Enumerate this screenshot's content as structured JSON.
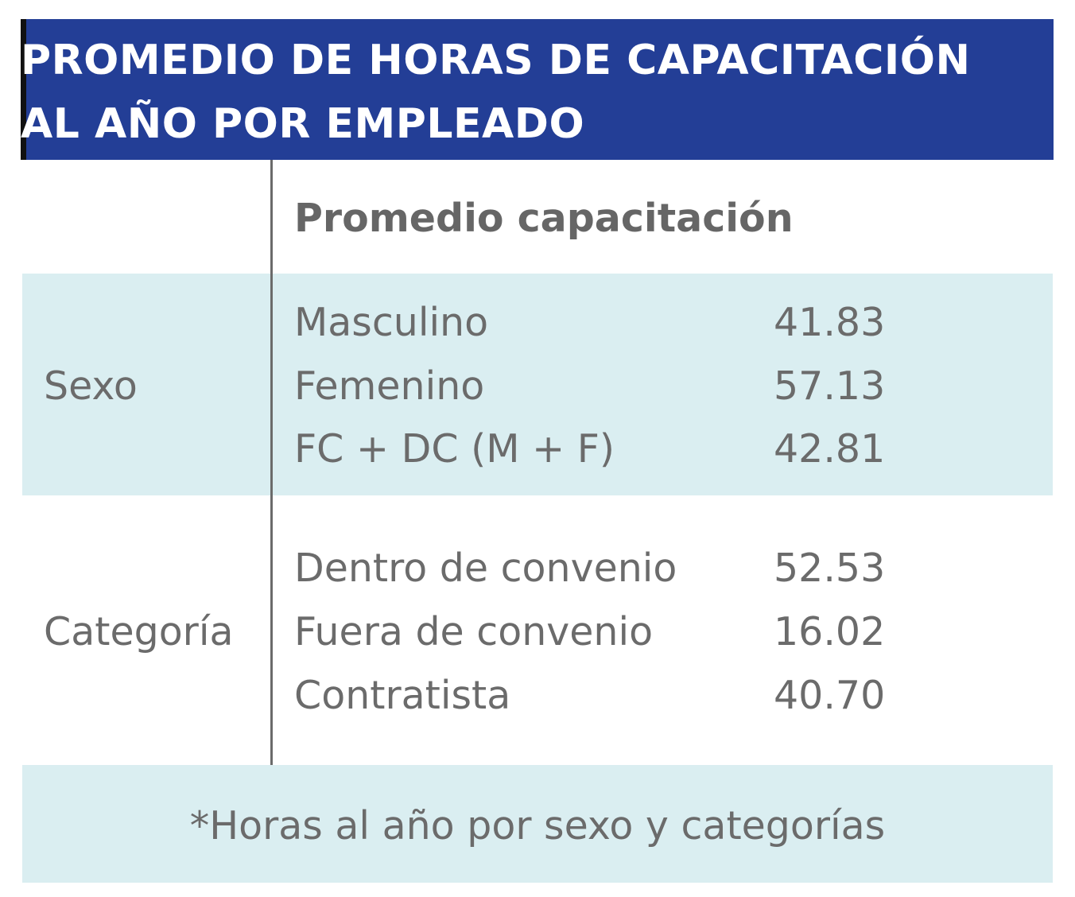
{
  "title": {
    "line1": "PROMEDIO DE HORAS DE CAPACITACIÓN",
    "line2": "AL AÑO POR EMPLEADO"
  },
  "column_header": "Promedio capacitación",
  "groups": [
    {
      "name": "Sexo",
      "rows": [
        {
          "label": "Masculino",
          "value": "41.83"
        },
        {
          "label": "Femenino",
          "value": "57.13"
        },
        {
          "label": "FC + DC (M + F)",
          "value": "42.81"
        }
      ]
    },
    {
      "name": "Categoría",
      "rows": [
        {
          "label": "Dentro de convenio",
          "value": "52.53"
        },
        {
          "label": "Fuera de convenio",
          "value": "16.02"
        },
        {
          "label": "Contratista",
          "value": "40.70"
        }
      ]
    }
  ],
  "footnote": "*Horas al año por sexo y categorías",
  "colors": {
    "header_bg": "#233e96",
    "band_bg": "#daeef1",
    "text": "#6b6b6b"
  }
}
